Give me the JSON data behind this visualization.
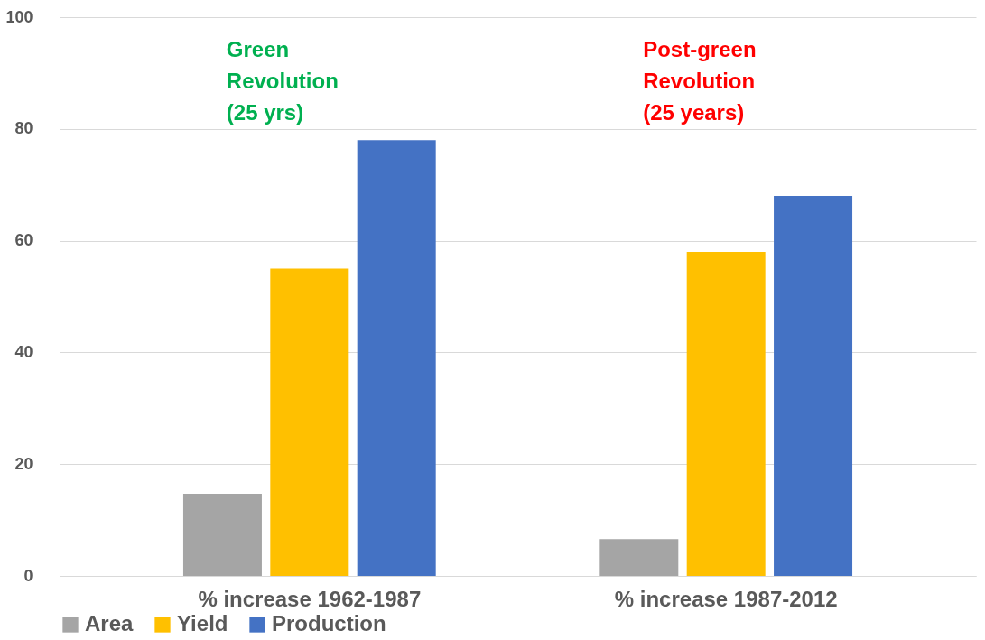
{
  "chart_data": {
    "type": "bar",
    "categories": [
      "% increase 1962-1987",
      "% increase 1987-2012"
    ],
    "series": [
      {
        "name": "Area",
        "color": "#a5a5a5",
        "values": [
          14.7,
          6.6
        ]
      },
      {
        "name": "Yield",
        "color": "#ffc000",
        "values": [
          55,
          58
        ]
      },
      {
        "name": "Production",
        "color": "#4472c4",
        "values": [
          78,
          68
        ]
      }
    ],
    "ylim": [
      0,
      100
    ],
    "yticks": [
      0,
      20,
      40,
      60,
      80,
      100
    ],
    "grid": "y",
    "legend": "bottom",
    "annotations": [
      "Green\nRevolution\n(25 yrs)",
      "Post-green\nRevolution\n(25 years)"
    ]
  }
}
